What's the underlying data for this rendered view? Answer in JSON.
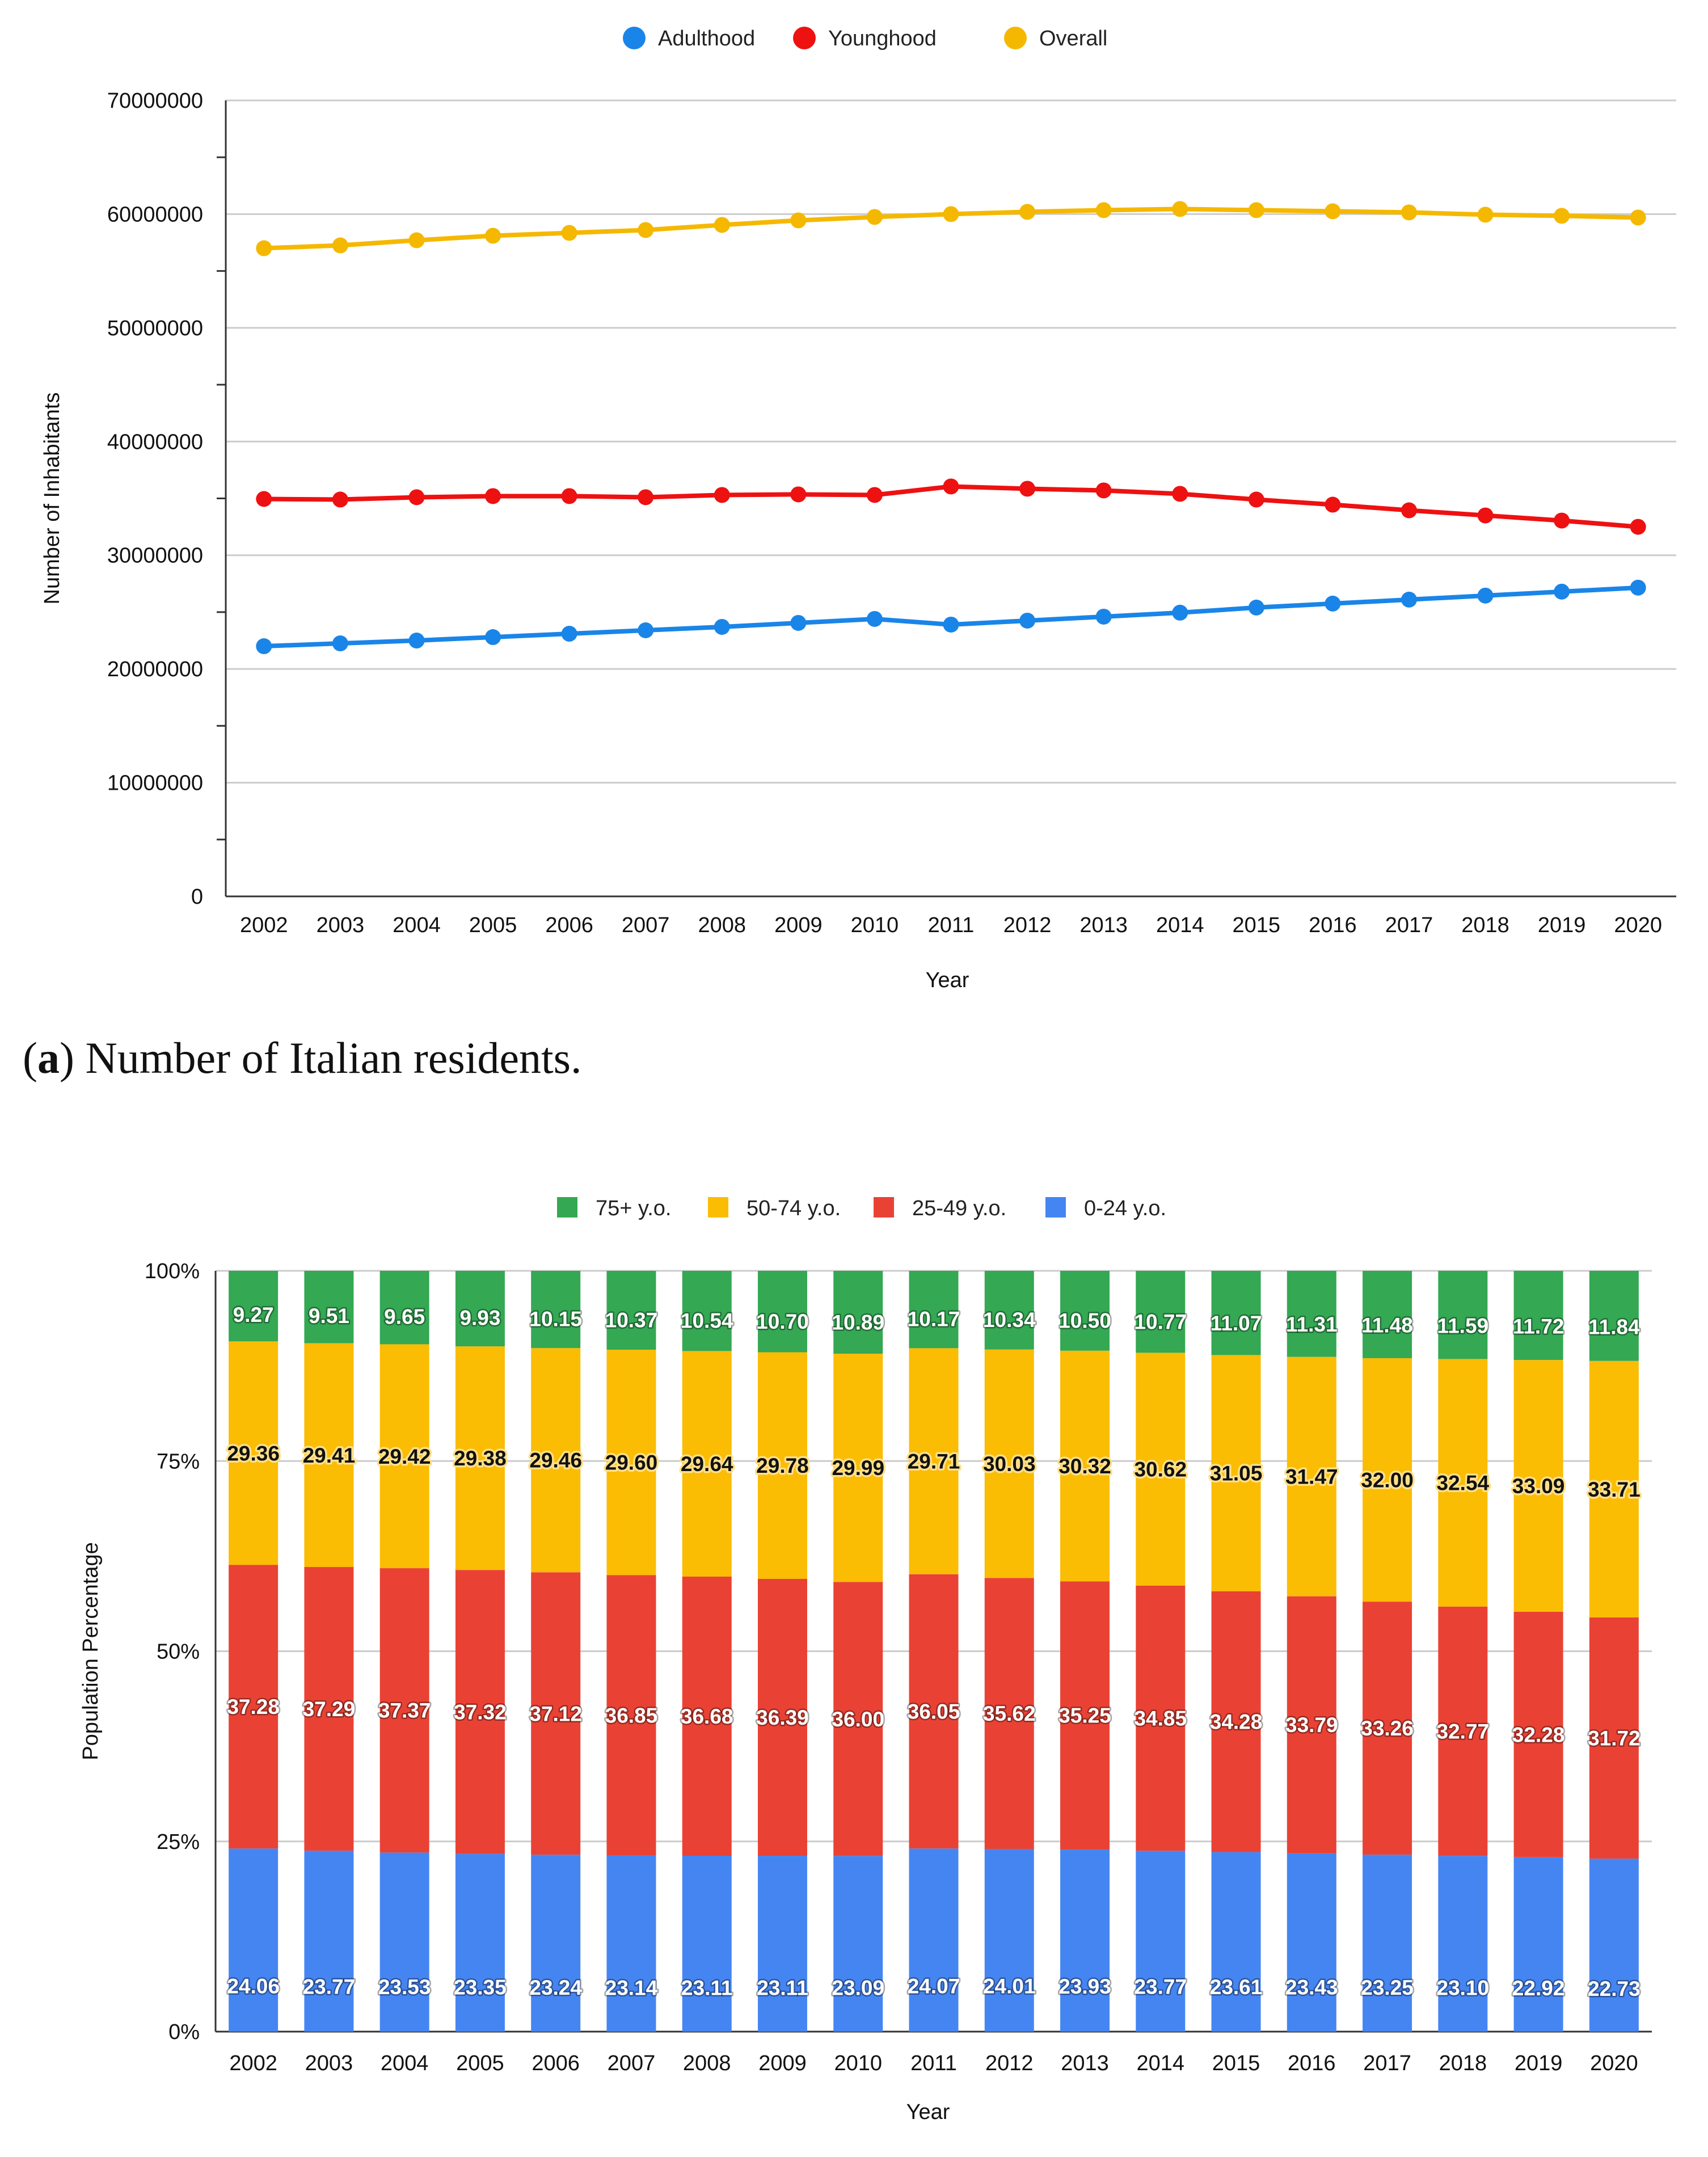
{
  "caption_a": {
    "letter": "a",
    "text": " Number of Italian residents."
  },
  "chart_data": [
    {
      "type": "line",
      "xlabel": "Year",
      "ylabel": "Number of Inhabitants",
      "ylim": [
        0,
        70000000
      ],
      "yticks": [
        "0",
        "10000000",
        "20000000",
        "30000000",
        "40000000",
        "50000000",
        "60000000",
        "70000000"
      ],
      "grid": true,
      "legend_position": "top",
      "x": [
        "2002",
        "2003",
        "2004",
        "2005",
        "2006",
        "2007",
        "2008",
        "2009",
        "2010",
        "2011",
        "2012",
        "2013",
        "2014",
        "2015",
        "2016",
        "2017",
        "2018",
        "2019",
        "2020"
      ],
      "series": [
        {
          "name": "Adulthood",
          "color": "#1a85e8",
          "values": [
            22000000,
            22250000,
            22500000,
            22800000,
            23100000,
            23400000,
            23700000,
            24050000,
            24400000,
            23900000,
            24250000,
            24600000,
            24950000,
            25400000,
            25750000,
            26100000,
            26450000,
            26800000,
            27150000
          ]
        },
        {
          "name": "Younghood",
          "color": "#ee1111",
          "values": [
            34950000,
            34900000,
            35100000,
            35200000,
            35200000,
            35100000,
            35300000,
            35350000,
            35300000,
            36050000,
            35850000,
            35700000,
            35400000,
            34900000,
            34450000,
            33950000,
            33500000,
            33050000,
            32500000
          ]
        },
        {
          "name": "Overall",
          "color": "#f5b800",
          "values": [
            57000000,
            57250000,
            57700000,
            58100000,
            58350000,
            58600000,
            59050000,
            59450000,
            59750000,
            60000000,
            60200000,
            60350000,
            60450000,
            60350000,
            60250000,
            60150000,
            59950000,
            59850000,
            59700000
          ]
        }
      ]
    },
    {
      "type": "bar",
      "stacked": true,
      "xlabel": "Year",
      "ylabel": "Population Percentage",
      "ylim": [
        0,
        100
      ],
      "yticks": [
        "0%",
        "25%",
        "50%",
        "75%",
        "100%"
      ],
      "grid": true,
      "legend_position": "top",
      "categories": [
        "2002",
        "2003",
        "2004",
        "2005",
        "2006",
        "2007",
        "2008",
        "2009",
        "2010",
        "2011",
        "2012",
        "2013",
        "2014",
        "2015",
        "2016",
        "2017",
        "2018",
        "2019",
        "2020"
      ],
      "series": [
        {
          "name": "0-24 y.o.",
          "color": "#4585f2",
          "label_color": "#ffffff",
          "halo": "#4585f2",
          "values": [
            "24.06",
            "23.77",
            "23.53",
            "23.35",
            "23.24",
            "23.14",
            "23.11",
            "23.11",
            "23.09",
            "24.07",
            "24.01",
            "23.93",
            "23.77",
            "23.61",
            "23.43",
            "23.25",
            "23.10",
            "22.92",
            "22.73"
          ]
        },
        {
          "name": "25-49 y.o.",
          "color": "#e94235",
          "label_color": "#ffffff",
          "halo": "#e94235",
          "values": [
            "37.28",
            "37.29",
            "37.37",
            "37.32",
            "37.12",
            "36.85",
            "36.68",
            "36.39",
            "36.00",
            "36.05",
            "35.62",
            "35.25",
            "34.85",
            "34.28",
            "33.79",
            "33.26",
            "32.77",
            "32.28",
            "31.72"
          ]
        },
        {
          "name": "50-74 y.o.",
          "color": "#fbbc04",
          "label_color": "#111111",
          "halo": "#fbbc04",
          "values": [
            "29.36",
            "29.41",
            "29.42",
            "29.38",
            "29.46",
            "29.60",
            "29.64",
            "29.78",
            "29.99",
            "29.71",
            "30.03",
            "30.32",
            "30.62",
            "31.05",
            "31.47",
            "32.00",
            "32.54",
            "33.09",
            "33.71"
          ]
        },
        {
          "name": "75+ y.o.",
          "color": "#34a853",
          "label_color": "#ffffff",
          "halo": "#34a853",
          "values": [
            "9.27",
            "9.51",
            "9.65",
            "9.93",
            "10.15",
            "10.37",
            "10.54",
            "10.70",
            "10.89",
            "10.17",
            "10.34",
            "10.50",
            "10.77",
            "11.07",
            "11.31",
            "11.48",
            "11.59",
            "11.72",
            "11.84"
          ]
        }
      ],
      "legend_order": [
        "75+ y.o.",
        "50-74 y.o.",
        "25-49 y.o.",
        "0-24 y.o."
      ]
    }
  ]
}
